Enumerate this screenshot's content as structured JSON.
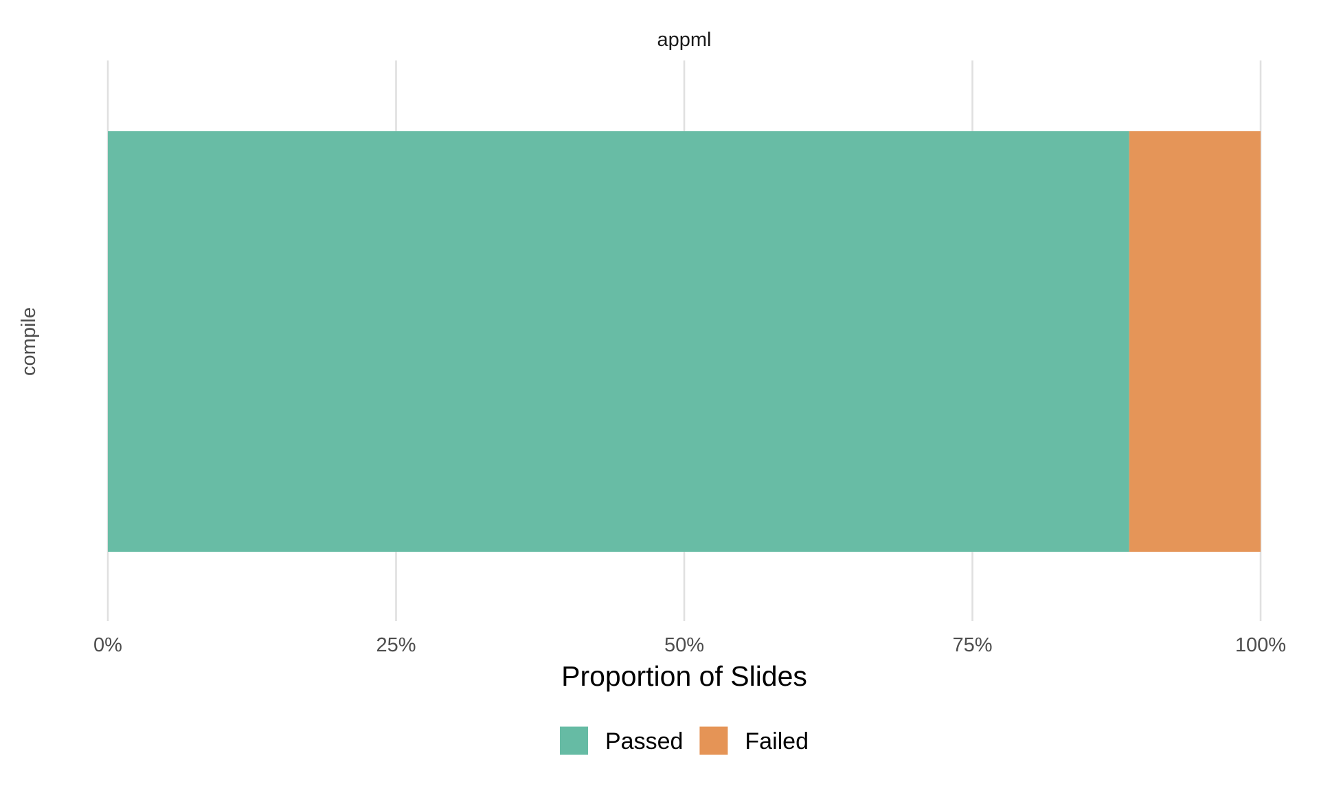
{
  "chart_data": {
    "type": "bar",
    "orientation": "horizontal",
    "stacked": true,
    "facet_title": "appml",
    "categories": [
      "compile"
    ],
    "series": [
      {
        "name": "Passed",
        "values": [
          0.886
        ],
        "color": "#66BBA4"
      },
      {
        "name": "Failed",
        "values": [
          0.114
        ],
        "color": "#E59456"
      }
    ],
    "xlabel": "Proportion of Slides",
    "ylabel": "compile",
    "xlim": [
      0,
      1
    ],
    "xticks": [
      {
        "value": 0,
        "label": "0%"
      },
      {
        "value": 0.25,
        "label": "25%"
      },
      {
        "value": 0.5,
        "label": "50%"
      },
      {
        "value": 0.75,
        "label": "75%"
      },
      {
        "value": 1,
        "label": "100%"
      }
    ],
    "grid": true,
    "legend_position": "bottom"
  }
}
